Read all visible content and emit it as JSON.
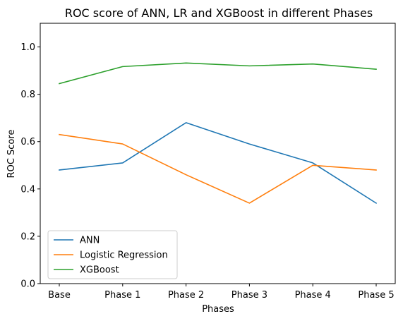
{
  "chart_data": {
    "type": "line",
    "title": "ROC score of ANN, LR and XGBoost in different Phases",
    "xlabel": "Phases",
    "ylabel": "ROC Score",
    "categories": [
      "Base",
      "Phase 1",
      "Phase 2",
      "Phase 3",
      "Phase 4",
      "Phase 5"
    ],
    "ylim": [
      0,
      1.1
    ],
    "yticks": [
      "0.0",
      "0.2",
      "0.4",
      "0.6",
      "0.8",
      "1.0"
    ],
    "grid": false,
    "legend_position": "lower-left",
    "series": [
      {
        "name": "ANN",
        "color": "#1f77b4",
        "values": [
          0.48,
          0.51,
          0.68,
          0.59,
          0.51,
          0.34
        ]
      },
      {
        "name": "Logistic Regression",
        "color": "#ff7f0e",
        "values": [
          0.63,
          0.59,
          0.46,
          0.34,
          0.5,
          0.48
        ]
      },
      {
        "name": "XGBoost",
        "color": "#2ca02c",
        "values": [
          0.845,
          0.917,
          0.932,
          0.92,
          0.928,
          0.906
        ]
      }
    ]
  }
}
